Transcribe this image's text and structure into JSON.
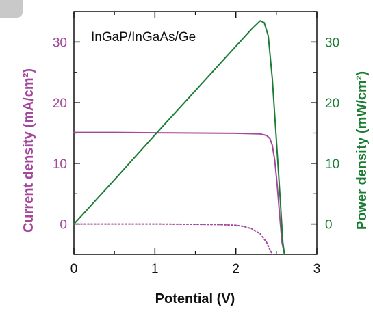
{
  "colors": {
    "current": "#a4489c",
    "power": "#1b7d34",
    "axis": "#111111"
  },
  "chart_data": {
    "type": "line",
    "annotation": "InGaP/InGaAs/Ge",
    "xlabel": "Potential (V)",
    "ylabel_left": "Current density (mA/cm²)",
    "ylabel_right": "Power density (mW/cm²)",
    "xlim": [
      0,
      3
    ],
    "ylim_left": [
      -5,
      35
    ],
    "ylim_right": [
      -5,
      35
    ],
    "x_ticks": [
      "0",
      "1",
      "2",
      "3"
    ],
    "y_ticks_left": [
      "0",
      "10",
      "20",
      "30"
    ],
    "y_ticks_right": [
      "0",
      "10",
      "20",
      "30"
    ],
    "grid": false,
    "series": [
      {
        "axis": "left",
        "style": "solid",
        "color_key": "current",
        "x": [
          0,
          0.5,
          1.0,
          1.5,
          2.0,
          2.3,
          2.38,
          2.42,
          2.45,
          2.48,
          2.51,
          2.54,
          2.57,
          2.6
        ],
        "y": [
          15.1,
          15.1,
          15.05,
          15.0,
          14.95,
          14.85,
          14.6,
          14.1,
          13.0,
          10.5,
          6.5,
          1.5,
          -3.0,
          -5.0
        ]
      },
      {
        "axis": "left",
        "style": "dotted",
        "color_key": "current",
        "x": [
          0,
          0.5,
          1.0,
          1.5,
          1.8,
          2.0,
          2.1,
          2.2,
          2.3,
          2.38,
          2.42,
          2.45
        ],
        "y": [
          0,
          0,
          0,
          -0.05,
          -0.1,
          -0.2,
          -0.4,
          -0.8,
          -1.6,
          -3.0,
          -4.2,
          -5.0
        ]
      },
      {
        "axis": "right",
        "style": "solid",
        "color_key": "power",
        "x": [
          0,
          0.5,
          1.0,
          1.5,
          2.0,
          2.2,
          2.3,
          2.35,
          2.4,
          2.45,
          2.5,
          2.55,
          2.58,
          2.6
        ],
        "y": [
          0,
          7.3,
          14.7,
          22.0,
          29.3,
          32.2,
          33.5,
          33.2,
          31.0,
          24.0,
          14.0,
          3.5,
          -3.0,
          -5.0
        ]
      }
    ]
  }
}
